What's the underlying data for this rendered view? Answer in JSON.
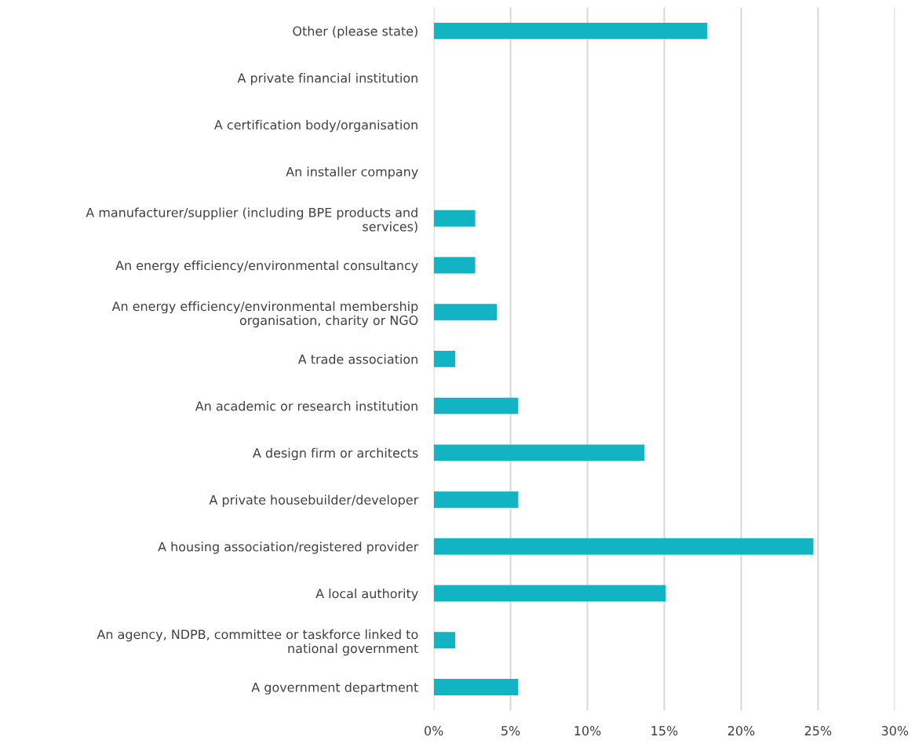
{
  "chart_data": {
    "type": "bar",
    "orientation": "horizontal",
    "categories": [
      "Other (please state)",
      "A private financial institution",
      "A certification body/organisation",
      "An installer company",
      "A manufacturer/supplier (including BPE products and services)",
      "An energy efficiency/environmental consultancy",
      "An energy efficiency/environmental membership organisation, charity or NGO",
      "A trade association",
      "An academic or research institution",
      "A design firm or architects",
      "A private housebuilder/developer",
      "A housing association/registered provider",
      "A local authority",
      "An agency, NDPB, committee or taskforce linked to national government",
      "A government department"
    ],
    "values": [
      17.8,
      0,
      0,
      0,
      2.7,
      2.7,
      4.1,
      1.4,
      5.5,
      13.7,
      5.5,
      24.7,
      15.1,
      1.4,
      5.5
    ],
    "color": "#12b3c3",
    "xlim": [
      0,
      30
    ],
    "xticks": [
      {
        "value": 0,
        "label": "0%"
      },
      {
        "value": 5,
        "label": "5%"
      },
      {
        "value": 10,
        "label": "10%"
      },
      {
        "value": 15,
        "label": "15%"
      },
      {
        "value": 20,
        "label": "20%"
      },
      {
        "value": 25,
        "label": "25%"
      },
      {
        "value": 30,
        "label": "30%"
      }
    ],
    "grid": "x"
  }
}
